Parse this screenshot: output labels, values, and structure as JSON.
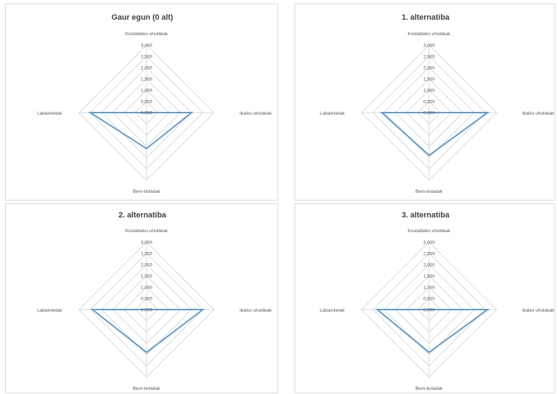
{
  "chart_data": [
    {
      "type": "radar",
      "title": "Gaur egun (0 alt)",
      "axes": [
        "Kostaldeko uholdeak",
        "Ibaiko uholdeak",
        "Bero-boladak",
        "Labainketak"
      ],
      "ticks": [
        "3,000",
        "2,500",
        "2,000",
        "1,500",
        "1,000",
        "0,500",
        "0,000"
      ],
      "rlim": [
        0,
        3
      ],
      "grid": true,
      "series": [
        {
          "values": [
            0,
            2.0,
            1.6,
            2.5
          ]
        }
      ]
    },
    {
      "type": "radar",
      "title": "1. alternatiba",
      "axes": [
        "Kostaldeko uholdeak",
        "Ibaiko uholdeak",
        "Bero-boladak",
        "Labainketak"
      ],
      "ticks": [
        "3,000",
        "2,500",
        "2,000",
        "1,500",
        "1,000",
        "0,500",
        "0,000"
      ],
      "rlim": [
        0,
        3
      ],
      "grid": true,
      "series": [
        {
          "values": [
            0,
            2.6,
            1.9,
            2.1
          ]
        }
      ]
    },
    {
      "type": "radar",
      "title": "2. alternatiba",
      "axes": [
        "Kostaldeko uholdeak",
        "Ibaiko uholdeak",
        "Bero-boladak",
        "Labainketak"
      ],
      "ticks": [
        "3,000",
        "2,500",
        "2,000",
        "1,500",
        "1,000",
        "0,500",
        "0,000"
      ],
      "rlim": [
        0,
        3
      ],
      "grid": true,
      "series": [
        {
          "values": [
            0,
            2.5,
            1.9,
            2.4
          ]
        }
      ]
    },
    {
      "type": "radar",
      "title": "3. alternatiba",
      "axes": [
        "Kostaldeko uholdeak",
        "Ibaiko uholdeak",
        "Bero-boladak",
        "Labainketak"
      ],
      "ticks": [
        "3,000",
        "2,500",
        "2,000",
        "1,500",
        "1,000",
        "0,500",
        "0,000"
      ],
      "rlim": [
        0,
        3
      ],
      "grid": true,
      "series": [
        {
          "values": [
            0,
            2.6,
            1.9,
            2.3
          ]
        }
      ]
    }
  ],
  "colors": {
    "series": "#5b9bd5",
    "grid": "#d9d9d9",
    "text": "#595959",
    "title": "#404040"
  }
}
